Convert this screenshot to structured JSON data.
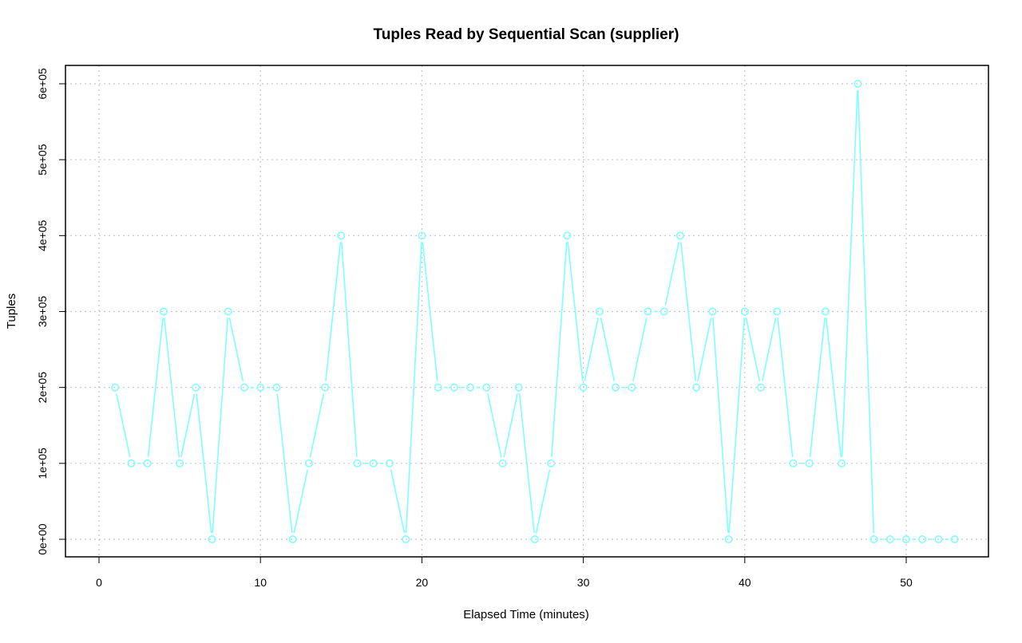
{
  "chart_data": {
    "type": "line",
    "title": "Tuples Read by Sequential Scan (supplier)",
    "xlabel": "Elapsed Time (minutes)",
    "ylabel": "Tuples",
    "xlim": [
      0,
      53
    ],
    "ylim": [
      0,
      600000
    ],
    "x_ticks": [
      0,
      10,
      20,
      30,
      40,
      50
    ],
    "x_tick_labels": [
      "0",
      "10",
      "20",
      "30",
      "40",
      "50"
    ],
    "y_ticks": [
      0,
      100000,
      200000,
      300000,
      400000,
      500000,
      600000
    ],
    "y_tick_labels": [
      "0e+00",
      "1e+05",
      "2e+05",
      "3e+05",
      "4e+05",
      "5e+05",
      "6e+05"
    ],
    "grid": true,
    "series": [
      {
        "color": "#7fffff",
        "marker": "circle",
        "x": [
          1,
          2,
          3,
          4,
          5,
          6,
          7,
          8,
          9,
          10,
          11,
          12,
          13,
          14,
          15,
          16,
          17,
          18,
          19,
          20,
          21,
          22,
          23,
          24,
          25,
          26,
          27,
          28,
          29,
          30,
          31,
          32,
          33,
          34,
          35,
          36,
          37,
          38,
          39,
          40,
          41,
          42,
          43,
          44,
          45,
          46,
          47,
          48,
          49,
          50,
          51,
          52,
          53
        ],
        "values": [
          200000,
          100000,
          100000,
          300000,
          100000,
          200000,
          0,
          300000,
          200000,
          200000,
          200000,
          0,
          100000,
          200000,
          400000,
          100000,
          100000,
          100000,
          0,
          400000,
          200000,
          200000,
          200000,
          200000,
          100000,
          200000,
          0,
          100000,
          400000,
          200000,
          300000,
          200000,
          200000,
          300000,
          300000,
          400000,
          200000,
          300000,
          0,
          300000,
          200000,
          300000,
          100000,
          100000,
          300000,
          100000,
          600000,
          0,
          0,
          0,
          0,
          0,
          0
        ]
      }
    ]
  }
}
